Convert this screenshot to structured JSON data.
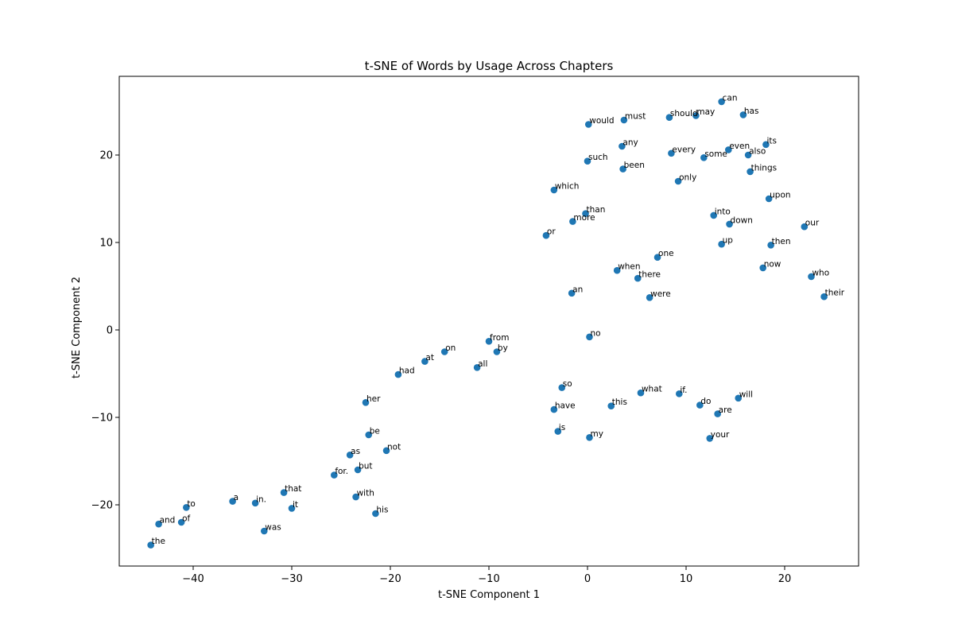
{
  "chart_data": {
    "type": "scatter",
    "title": "t-SNE of Words by Usage Across Chapters",
    "xlabel": "t-SNE Component 1",
    "ylabel": "t-SNE Component 2",
    "xlim": [
      -47.5,
      27.5
    ],
    "ylim": [
      -27,
      29
    ],
    "xticks": [
      -40,
      -30,
      -20,
      -10,
      0,
      10,
      20
    ],
    "yticks": [
      -20,
      -10,
      0,
      10,
      20
    ],
    "grid": false,
    "marker_color": "#1f77b4",
    "points": [
      {
        "label": "can",
        "x": 13.6,
        "y": 26.1
      },
      {
        "label": "has",
        "x": 15.8,
        "y": 24.6
      },
      {
        "label": "may",
        "x": 11.0,
        "y": 24.5
      },
      {
        "label": "should",
        "x": 8.3,
        "y": 24.3
      },
      {
        "label": "must",
        "x": 3.7,
        "y": 24.0
      },
      {
        "label": "would",
        "x": 0.1,
        "y": 23.5
      },
      {
        "label": "its",
        "x": 18.1,
        "y": 21.2
      },
      {
        "label": "any",
        "x": 3.5,
        "y": 21.0
      },
      {
        "label": "even",
        "x": 14.3,
        "y": 20.6
      },
      {
        "label": "every",
        "x": 8.5,
        "y": 20.2
      },
      {
        "label": "also",
        "x": 16.3,
        "y": 20.0
      },
      {
        "label": "some",
        "x": 11.8,
        "y": 19.7
      },
      {
        "label": "such",
        "x": 0.0,
        "y": 19.3
      },
      {
        "label": "been",
        "x": 3.6,
        "y": 18.4
      },
      {
        "label": "things",
        "x": 16.5,
        "y": 18.1
      },
      {
        "label": "only",
        "x": 9.2,
        "y": 17.0
      },
      {
        "label": "which",
        "x": -3.4,
        "y": 16.0
      },
      {
        "label": "upon",
        "x": 18.4,
        "y": 15.0
      },
      {
        "label": "than",
        "x": -0.2,
        "y": 13.3
      },
      {
        "label": "into",
        "x": 12.8,
        "y": 13.1
      },
      {
        "label": "more",
        "x": -1.5,
        "y": 12.4
      },
      {
        "label": "down",
        "x": 14.4,
        "y": 12.1
      },
      {
        "label": "our",
        "x": 22.0,
        "y": 11.8
      },
      {
        "label": "or",
        "x": -4.2,
        "y": 10.8
      },
      {
        "label": "up",
        "x": 13.6,
        "y": 9.8
      },
      {
        "label": "then",
        "x": 18.6,
        "y": 9.7
      },
      {
        "label": "one",
        "x": 7.1,
        "y": 8.3
      },
      {
        "label": "now",
        "x": 17.8,
        "y": 7.1
      },
      {
        "label": "when",
        "x": 3.0,
        "y": 6.8
      },
      {
        "label": "who",
        "x": 22.7,
        "y": 6.1
      },
      {
        "label": "there",
        "x": 5.1,
        "y": 5.9
      },
      {
        "label": "an",
        "x": -1.6,
        "y": 4.2
      },
      {
        "label": "their",
        "x": 24.0,
        "y": 3.8
      },
      {
        "label": "were",
        "x": 6.3,
        "y": 3.7
      },
      {
        "label": "no",
        "x": 0.2,
        "y": -0.8
      },
      {
        "label": "from",
        "x": -10.0,
        "y": -1.3
      },
      {
        "label": "on",
        "x": -14.5,
        "y": -2.5
      },
      {
        "label": "by",
        "x": -9.2,
        "y": -2.5
      },
      {
        "label": "at",
        "x": -16.5,
        "y": -3.6
      },
      {
        "label": "all",
        "x": -11.2,
        "y": -4.3
      },
      {
        "label": "had",
        "x": -19.2,
        "y": -5.1
      },
      {
        "label": "so",
        "x": -2.6,
        "y": -6.6
      },
      {
        "label": "what",
        "x": 5.4,
        "y": -7.2
      },
      {
        "label": "if.",
        "x": 9.3,
        "y": -7.3
      },
      {
        "label": "will",
        "x": 15.3,
        "y": -7.8
      },
      {
        "label": "her",
        "x": -22.5,
        "y": -8.3
      },
      {
        "label": "do",
        "x": 11.4,
        "y": -8.6
      },
      {
        "label": "this",
        "x": 2.4,
        "y": -8.7
      },
      {
        "label": "have",
        "x": -3.4,
        "y": -9.1
      },
      {
        "label": "are",
        "x": 13.2,
        "y": -9.6
      },
      {
        "label": "is",
        "x": -3.0,
        "y": -11.6
      },
      {
        "label": "be",
        "x": -22.2,
        "y": -12.0
      },
      {
        "label": "my",
        "x": 0.2,
        "y": -12.3
      },
      {
        "label": "your",
        "x": 12.4,
        "y": -12.4
      },
      {
        "label": "not",
        "x": -20.4,
        "y": -13.8
      },
      {
        "label": "as",
        "x": -24.1,
        "y": -14.3
      },
      {
        "label": "but",
        "x": -23.3,
        "y": -16.0
      },
      {
        "label": "for.",
        "x": -25.7,
        "y": -16.6
      },
      {
        "label": "that",
        "x": -30.8,
        "y": -18.6
      },
      {
        "label": "with",
        "x": -23.5,
        "y": -19.1
      },
      {
        "label": "a",
        "x": -36.0,
        "y": -19.6
      },
      {
        "label": "in.",
        "x": -33.7,
        "y": -19.8
      },
      {
        "label": "to",
        "x": -40.7,
        "y": -20.3
      },
      {
        "label": "it",
        "x": -30.0,
        "y": -20.4
      },
      {
        "label": "his",
        "x": -21.5,
        "y": -21.0
      },
      {
        "label": "of",
        "x": -41.2,
        "y": -22.0
      },
      {
        "label": "and",
        "x": -43.5,
        "y": -22.2
      },
      {
        "label": "was",
        "x": -32.8,
        "y": -23.0
      },
      {
        "label": "the",
        "x": -44.3,
        "y": -24.6
      }
    ]
  }
}
